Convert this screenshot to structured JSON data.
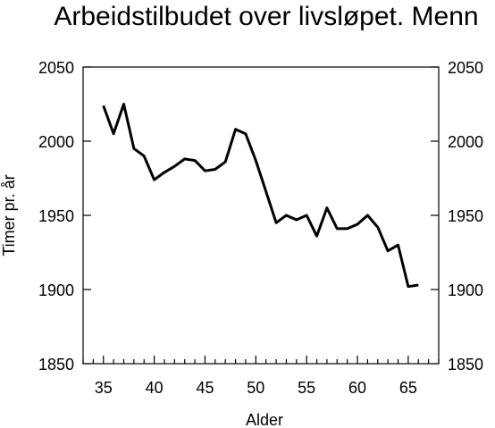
{
  "chart_data": {
    "type": "line",
    "title": "Arbeidstilbudet over livsløpet. Menn",
    "xlabel": "Alder",
    "ylabel": "Timer pr. år",
    "xlim": [
      33,
      68
    ],
    "ylim": [
      1850,
      2050
    ],
    "xticks": [
      35,
      40,
      45,
      50,
      55,
      60,
      65
    ],
    "yticks": [
      1850,
      1900,
      1950,
      2000,
      2050
    ],
    "xtick_labels": [
      "35",
      "40",
      "45",
      "50",
      "55",
      "60",
      "65"
    ],
    "ytick_labels_left": [
      "1850",
      "1900",
      "1950",
      "2000",
      "2050"
    ],
    "ytick_labels_right": [
      "1850",
      "1900",
      "1950",
      "2000",
      "2050"
    ],
    "grid": false,
    "legend": "none",
    "color": "#000000",
    "series": [
      {
        "x": [
          35,
          36,
          37,
          38,
          39,
          40,
          41,
          42,
          43,
          44,
          45,
          46,
          47,
          48,
          49,
          50,
          51,
          52,
          53,
          54,
          55,
          56,
          57,
          58,
          59,
          60,
          61,
          62,
          63,
          64,
          65,
          66
        ],
        "values": [
          2024,
          2005,
          2025,
          1995,
          1990,
          1974,
          1979,
          1983,
          1988,
          1987,
          1980,
          1981,
          1986,
          2008,
          2005,
          1987,
          1966,
          1945,
          1950,
          1947,
          1950,
          1936,
          1955,
          1941,
          1941,
          1944,
          1950,
          1942,
          1926,
          1930,
          1902,
          1903
        ]
      }
    ]
  }
}
